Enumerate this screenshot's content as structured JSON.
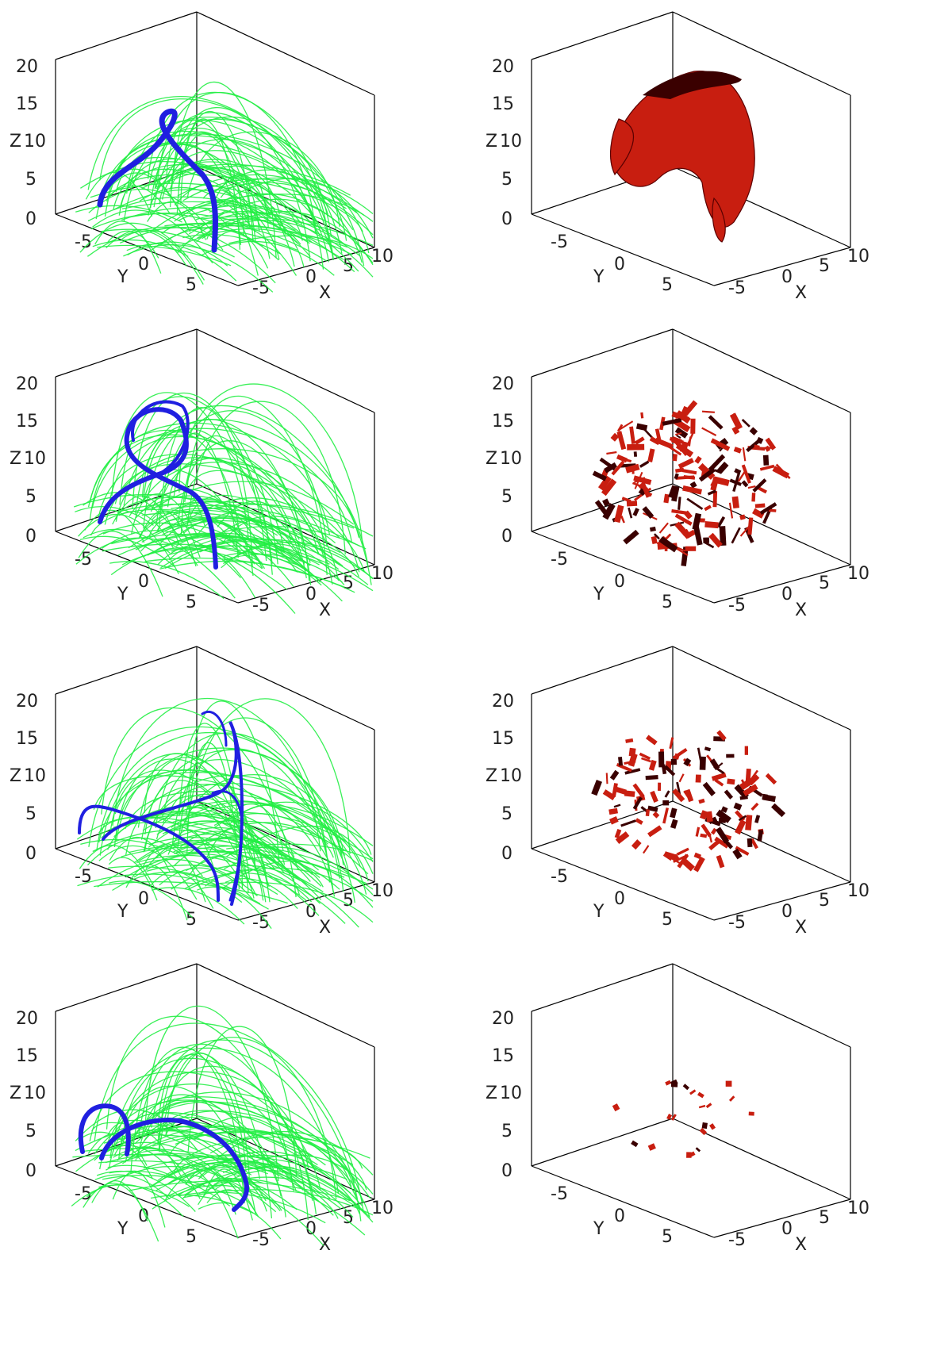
{
  "colors": {
    "field_lines": "#22ee44",
    "flux_rope": "#2020e0",
    "isosurface": "#c81e10",
    "isosurface_shadow": "#3a0000",
    "axes": "#000000"
  },
  "axes": {
    "z_label": "Z",
    "y_label": "Y",
    "x_label": "X",
    "z_ticks": [
      "0",
      "5",
      "10",
      "15",
      "20"
    ],
    "y_ticks": [
      "-5",
      "0",
      "5"
    ],
    "x_ticks": [
      "-5",
      "0",
      "5",
      "10"
    ]
  },
  "panels": [
    {
      "column": "left",
      "row": 1,
      "content": "field-lines",
      "rope": "arch"
    },
    {
      "column": "right",
      "row": 1,
      "content": "isosurface",
      "intensity": 1.0
    },
    {
      "column": "left",
      "row": 2,
      "content": "field-lines",
      "rope": "loop"
    },
    {
      "column": "right",
      "row": 2,
      "content": "isosurface",
      "intensity": 0.8
    },
    {
      "column": "left",
      "row": 3,
      "content": "field-lines",
      "rope": "split"
    },
    {
      "column": "right",
      "row": 3,
      "content": "isosurface",
      "intensity": 0.6
    },
    {
      "column": "left",
      "row": 4,
      "content": "field-lines",
      "rope": "double-arch"
    },
    {
      "column": "right",
      "row": 4,
      "content": "isosurface",
      "intensity": 0.1
    }
  ]
}
